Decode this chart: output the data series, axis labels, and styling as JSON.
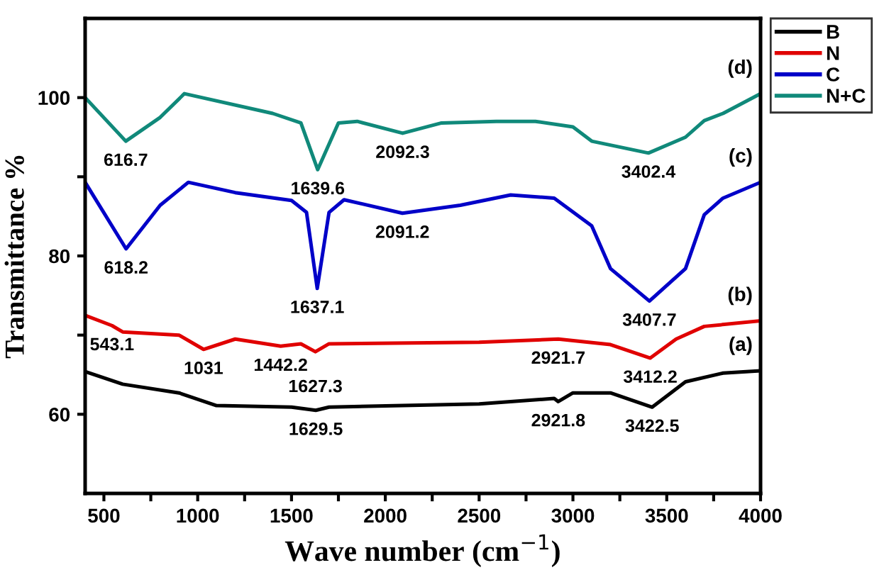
{
  "chart_data": {
    "type": "line",
    "xlabel": "Wave number (cm$^{−1}$)",
    "ylabel": "Transmittance %",
    "xlim": [
      400,
      4000
    ],
    "ylim": [
      50,
      110
    ],
    "xticks": [
      500,
      {
        "value": 750,
        "label": null
      },
      1000,
      {
        "value": 1250,
        "label": null
      },
      1500,
      {
        "value": 1750,
        "label": null
      },
      2000,
      {
        "value": 2250,
        "label": null
      },
      2500,
      {
        "value": 2750,
        "label": null
      },
      3000,
      {
        "value": 3250,
        "label": null
      },
      3500,
      {
        "value": 3750,
        "label": null
      },
      4000
    ],
    "yticks": [
      60,
      {
        "value": 70,
        "label": null
      },
      80,
      {
        "value": 90,
        "label": null
      },
      100
    ],
    "grid": false,
    "legend": "right",
    "marker": "none",
    "line_style": "solid",
    "series": [
      {
        "name": "B",
        "color": "#000000",
        "x": [
          400,
          600,
          900,
          1100,
          1500,
          1629.5,
          1700,
          2500,
          2900,
          2921.8,
          3000,
          3200,
          3422.5,
          3600,
          3800,
          4000
        ],
        "values": [
          65.4,
          63.8,
          62.7,
          61.1,
          60.9,
          60.5,
          60.9,
          61.3,
          62,
          61.6,
          62.7,
          62.7,
          60.9,
          64.1,
          65.2,
          65.5
        ]
      },
      {
        "name": "N",
        "color": "#e00000",
        "x": [
          400,
          543.1,
          600,
          900,
          1031,
          1200,
          1442.2,
          1550,
          1627.3,
          1700,
          2500,
          2921.7,
          3200,
          3412.2,
          3550,
          3700,
          4000
        ],
        "values": [
          72.5,
          71.2,
          70.4,
          70,
          68.2,
          69.5,
          68.6,
          68.9,
          67.9,
          68.9,
          69.1,
          69.5,
          68.8,
          67.1,
          69.5,
          71.1,
          71.8
        ]
      },
      {
        "name": "C",
        "color": "#0000c8",
        "x": [
          400,
          618.2,
          800,
          950,
          1200,
          1500,
          1580,
          1637.1,
          1700,
          1780,
          2091.2,
          2400,
          2668,
          2900,
          3100,
          3200,
          3407.7,
          3600,
          3700,
          3800,
          4000
        ],
        "values": [
          89.3,
          80.9,
          86.4,
          89.3,
          88,
          87,
          85.5,
          75.9,
          85.5,
          87.1,
          85.4,
          86.4,
          87.7,
          87.3,
          83.8,
          78.4,
          74.3,
          78.4,
          85.2,
          87.3,
          89.3
        ]
      },
      {
        "name": "N+C",
        "color": "#10897a",
        "x": [
          400,
          616.7,
          800,
          929,
          1400,
          1550,
          1639.6,
          1750,
          1850,
          2092.3,
          2300,
          2592,
          2800,
          3000,
          3100,
          3402.4,
          3600,
          3700,
          3800,
          4000
        ],
        "values": [
          100,
          94.5,
          97.5,
          100.5,
          98,
          96.8,
          90.9,
          96.8,
          97,
          95.5,
          96.8,
          97,
          97,
          96.3,
          94.5,
          93,
          95,
          97.1,
          98,
          100.5
        ]
      }
    ],
    "annotations": [
      {
        "text": "616.7",
        "x": 616.7,
        "y": 94.5
      },
      {
        "text": "1639.6",
        "x": 1639.6,
        "y": 90.9
      },
      {
        "text": "2092.3",
        "x": 2092.3,
        "y": 95.5
      },
      {
        "text": "3402.4",
        "x": 3402.4,
        "y": 93
      },
      {
        "text": "618.2",
        "x": 618.2,
        "y": 80.9
      },
      {
        "text": "1637.1",
        "x": 1637.1,
        "y": 75.9
      },
      {
        "text": "2091.2",
        "x": 2091.2,
        "y": 85.4
      },
      {
        "text": "3407.7",
        "x": 3407.7,
        "y": 74.3
      },
      {
        "text": "543.1",
        "x": 543.1,
        "y": 71.2
      },
      {
        "text": "1031",
        "x": 1031,
        "y": 68.2
      },
      {
        "text": "1442.2",
        "x": 1442.2,
        "y": 68.6
      },
      {
        "text": "1627.3",
        "x": 1627.3,
        "y": 67.9
      },
      {
        "text": "2921.7",
        "x": 2921.7,
        "y": 69.5
      },
      {
        "text": "3412.2",
        "x": 3412.2,
        "y": 67.1
      },
      {
        "text": "1629.5",
        "x": 1629.5,
        "y": 60.5
      },
      {
        "text": "2921.8",
        "x": 2921.8,
        "y": 61.6
      },
      {
        "text": "3422.5",
        "x": 3422.5,
        "y": 60.9
      },
      {
        "text": "(a)",
        "x": 4000,
        "y": 65.5
      },
      {
        "text": "(b)",
        "x": 4000,
        "y": 71.8
      },
      {
        "text": "(c)",
        "x": 4000,
        "y": 89.3
      },
      {
        "text": "(d)",
        "x": 4000,
        "y": 100.5
      }
    ]
  }
}
